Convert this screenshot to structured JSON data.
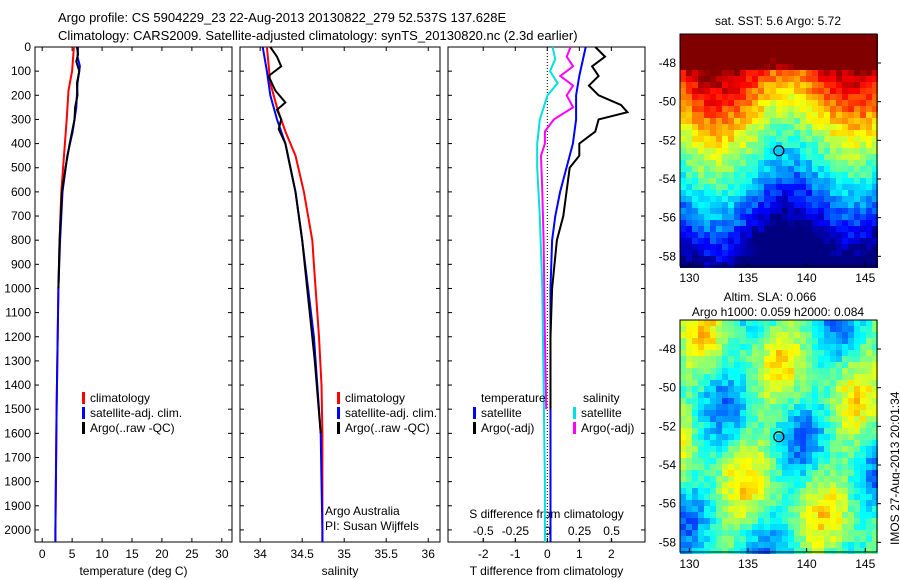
{
  "title": {
    "line1": "Argo profile: CS 5904229_23 22-Aug-2013 20130822_279 52.537S 137.628E",
    "line2": "Climatology: CARS2009. Satellite-adjusted climatology: synTS_20130820.nc (2.3d earlier)"
  },
  "colors": {
    "climatology": "#ff0000",
    "satellite": "#0000ff",
    "argo": "#000000",
    "sal_satellite": "#00e0e0",
    "sal_argo": "#ff00ff"
  },
  "depth_ticks": [
    0,
    100,
    200,
    300,
    400,
    500,
    600,
    700,
    800,
    900,
    1000,
    1100,
    1200,
    1300,
    1400,
    1500,
    1600,
    1700,
    1800,
    1900,
    2000
  ],
  "chart_data": [
    {
      "type": "line",
      "id": "temperature",
      "xlabel": "temperature (deg C)",
      "ylabel": "depth",
      "xlim": [
        -1.2,
        31.7
      ],
      "ylim": [
        0,
        2050
      ],
      "y_reversed": true,
      "xticks": [
        0,
        5,
        10,
        15,
        20,
        25,
        30
      ],
      "legend": [
        "climatology",
        "satellite-adj. clim.",
        "Argo(..raw -QC)"
      ],
      "series": [
        {
          "name": "climatology",
          "color": "#ff0000",
          "depth": [
            0,
            100,
            180,
            300,
            400,
            500,
            600,
            800,
            1000,
            1500,
            2000,
            2050
          ],
          "values": [
            5.3,
            5.0,
            4.4,
            4.1,
            3.8,
            3.5,
            3.2,
            2.9,
            2.7,
            2.4,
            2.2,
            2.2
          ]
        },
        {
          "name": "satellite-adj. clim.",
          "color": "#0000ff",
          "depth": [
            0,
            40,
            80,
            150,
            250,
            350,
            450,
            600,
            800,
            1000,
            1500,
            2000,
            2050
          ],
          "values": [
            6.0,
            5.9,
            6.3,
            5.9,
            5.7,
            5.1,
            4.2,
            3.4,
            3.0,
            2.7,
            2.4,
            2.2,
            2.2
          ]
        },
        {
          "name": "Argo(..raw -QC)",
          "color": "#000000",
          "depth": [
            0,
            30,
            60,
            100,
            150,
            200,
            250,
            300,
            350,
            400,
            500,
            600,
            800,
            1000
          ],
          "values": [
            5.8,
            6.0,
            5.7,
            6.2,
            5.8,
            5.9,
            5.5,
            5.4,
            5.0,
            4.6,
            3.9,
            3.3,
            2.9,
            2.7
          ]
        }
      ]
    },
    {
      "type": "line",
      "id": "salinity",
      "xlabel": "salinity",
      "ylabel": "depth",
      "xlim": [
        33.76,
        36.14
      ],
      "ylim": [
        0,
        2050
      ],
      "y_reversed": true,
      "xticks": [
        34,
        34.5,
        35,
        35.5,
        36
      ],
      "legend": [
        "climatology",
        "satellite-adj. clim.",
        "Argo(..raw -QC)"
      ],
      "annotation": [
        "Argo Australia",
        "PI: Susan Wijffels"
      ],
      "series": [
        {
          "name": "climatology",
          "color": "#ff0000",
          "depth": [
            0,
            150,
            250,
            350,
            450,
            600,
            800,
            900,
            1000,
            1200,
            1400,
            1600,
            2000,
            2050
          ],
          "values": [
            34.08,
            34.12,
            34.2,
            34.3,
            34.42,
            34.52,
            34.62,
            34.64,
            34.66,
            34.7,
            34.73,
            34.74,
            34.74,
            34.74
          ]
        },
        {
          "name": "satellite-adj. clim.",
          "color": "#0000ff",
          "depth": [
            0,
            100,
            200,
            300,
            400,
            500,
            600,
            800,
            1000,
            1200,
            1400,
            1600,
            1800,
            2000,
            2050
          ],
          "values": [
            34.03,
            34.08,
            34.12,
            34.2,
            34.3,
            34.36,
            34.42,
            34.5,
            34.57,
            34.64,
            34.68,
            34.72,
            34.73,
            34.74,
            34.74
          ]
        },
        {
          "name": "Argo(..raw -QC)",
          "color": "#000000",
          "depth": [
            0,
            40,
            80,
            120,
            180,
            230,
            260,
            300,
            340,
            400,
            500,
            600,
            800,
            1000,
            1300,
            1600
          ],
          "values": [
            34.12,
            34.2,
            34.25,
            34.1,
            34.18,
            34.3,
            34.2,
            34.25,
            34.22,
            34.3,
            34.36,
            34.42,
            34.5,
            34.56,
            34.65,
            34.72
          ]
        }
      ]
    },
    {
      "type": "line",
      "id": "difference",
      "xlabel": "T difference from climatology",
      "x2label": "S difference from climatology",
      "xlim": [
        -3.1,
        3.05
      ],
      "x2lim": [
        -0.775,
        0.76
      ],
      "ylim": [
        0,
        2050
      ],
      "y_reversed": true,
      "xticks": [
        -2,
        -1,
        0,
        1,
        2
      ],
      "x2ticks": [
        "-0.5",
        "-0.25",
        "0",
        "0.25",
        "0.5"
      ],
      "legend": {
        "temperature_header": "temperature",
        "salinity_header": "salinity",
        "items": [
          "satellite",
          "Argo(-adj)",
          "satellite",
          "Argo(-adj)"
        ]
      },
      "series": [
        {
          "name": "T satellite",
          "axis": "T",
          "color": "#0000ff",
          "depth": [
            0,
            60,
            120,
            200,
            300,
            400,
            500,
            600,
            700,
            800,
            1000,
            1200,
            2000,
            2050
          ],
          "values": [
            1.2,
            1.1,
            1.0,
            0.9,
            0.9,
            0.8,
            0.6,
            0.4,
            0.25,
            0.15,
            0.1,
            0.1,
            0.1,
            0.1
          ]
        },
        {
          "name": "T Argo(-adj)",
          "axis": "T",
          "color": "#000000",
          "depth": [
            0,
            40,
            80,
            120,
            160,
            200,
            240,
            270,
            300,
            350,
            400,
            450,
            500,
            600,
            700,
            800,
            1000,
            1200,
            1500
          ],
          "values": [
            1.5,
            1.8,
            1.4,
            1.6,
            1.3,
            1.6,
            2.3,
            2.5,
            1.6,
            1.5,
            1.0,
            1.0,
            0.7,
            0.6,
            0.5,
            0.3,
            0.15,
            0.1,
            0.1
          ]
        },
        {
          "name": "S satellite",
          "axis": "S",
          "color": "#00e0e0",
          "depth": [
            0,
            50,
            100,
            150,
            200,
            300,
            400,
            500,
            700,
            1000,
            1400,
            1800,
            2050
          ],
          "values": [
            0.04,
            0.06,
            0.02,
            0.08,
            0.0,
            -0.06,
            -0.08,
            -0.08,
            -0.06,
            -0.04,
            -0.03,
            -0.02,
            -0.02
          ]
        },
        {
          "name": "S Argo(-adj)",
          "axis": "S",
          "color": "#ff00ff",
          "depth": [
            0,
            40,
            80,
            120,
            160,
            200,
            250,
            300,
            350,
            400,
            450,
            600,
            800,
            1200,
            1500
          ],
          "values": [
            0.18,
            0.15,
            0.2,
            0.1,
            0.2,
            0.15,
            0.2,
            0.05,
            -0.02,
            -0.02,
            -0.05,
            -0.04,
            -0.03,
            -0.02,
            -0.01
          ]
        }
      ]
    },
    {
      "type": "heatmap",
      "id": "sst_map",
      "title": "sat. SST: 5.6 Argo: 5.72",
      "xticks": [
        130,
        135,
        140,
        145
      ],
      "yticks": [
        -48,
        -50,
        -52,
        -54,
        -56,
        -58
      ],
      "xlim": [
        129.2,
        146
      ],
      "ylim": [
        -58.5,
        -46.5
      ],
      "marker": {
        "lon": 137.628,
        "lat": -52.537
      }
    },
    {
      "type": "heatmap",
      "id": "sla_map",
      "title": [
        "Altim. SLA: 0.066",
        "Argo h1000: 0.059 h2000: 0.084"
      ],
      "xticks": [
        130,
        135,
        140,
        145
      ],
      "yticks": [
        -48,
        -50,
        -52,
        -54,
        -56,
        -58
      ],
      "xlim": [
        129.2,
        146
      ],
      "ylim": [
        -58.5,
        -46.5
      ],
      "marker": {
        "lon": 137.628,
        "lat": -52.537
      }
    }
  ],
  "timestamp": "IMOS 27-Aug-2013 20:01:34"
}
